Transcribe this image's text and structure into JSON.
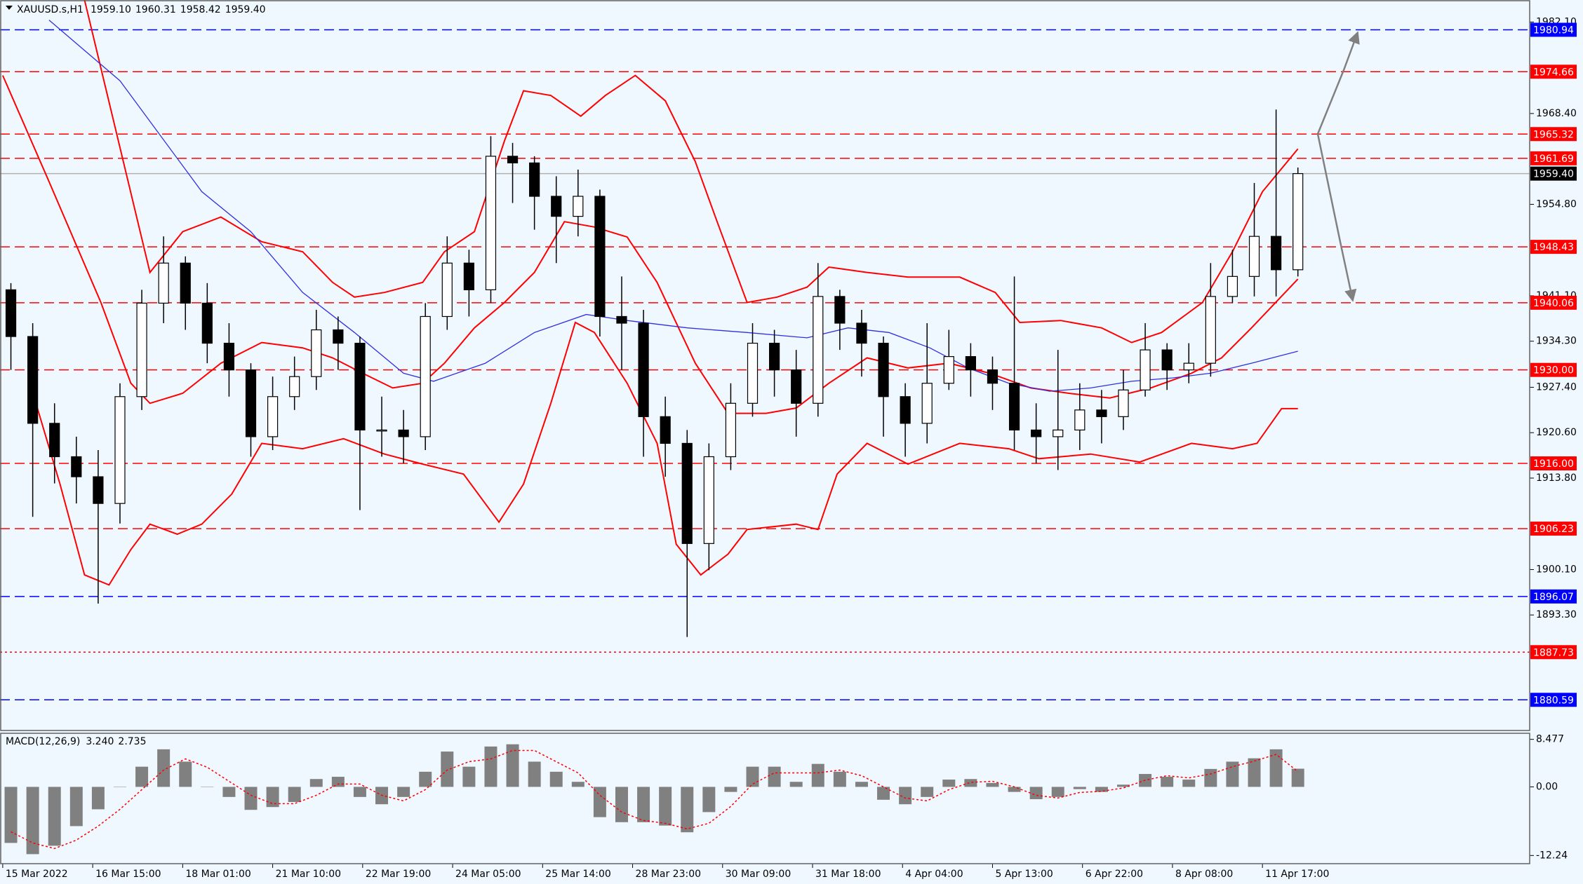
{
  "chart_data": [
    {
      "type": "candlestick",
      "title": "XAUUSD.s,H1",
      "quote": [
        {
          "value": 1959.1,
          "label": "1959.10"
        },
        1960.31,
        1958.42,
        {
          "value": 1959.4,
          "label": "1959.40"
        }
      ],
      "x": [
        3,
        11,
        19,
        27,
        35,
        43,
        51,
        59,
        67,
        75,
        83,
        91,
        99,
        107,
        115,
        123,
        131,
        139,
        147,
        155,
        163,
        171,
        179,
        187,
        195,
        203,
        211,
        219,
        227,
        235,
        243,
        251,
        259,
        267,
        275,
        283,
        291,
        299,
        307,
        315,
        323,
        331,
        339,
        347,
        355,
        363,
        371,
        379,
        387,
        395,
        403,
        411,
        419,
        427,
        435,
        443,
        451,
        459,
        467,
        475
      ],
      "open": [
        1942,
        1935,
        1922,
        1917,
        1914,
        1910,
        1926,
        1940,
        1946,
        1940,
        1934,
        1930,
        1920,
        1926,
        1929,
        1936,
        1934,
        1921,
        1921,
        1920,
        1938,
        1946,
        1942,
        1962,
        1961,
        1956,
        1953,
        1956,
        1938,
        1937,
        1923,
        1919,
        1904,
        1917,
        1925,
        1934,
        1930,
        1925,
        1941,
        1937,
        1934,
        1926,
        1922,
        1928,
        1932,
        1930,
        1928,
        1921,
        1920,
        1921,
        1924,
        1923,
        1927,
        1933,
        1930,
        1931,
        1941,
        1944,
        1950,
        1945
      ],
      "high": [
        1943,
        1937,
        1925,
        1920,
        1918,
        1928,
        1942,
        1950,
        1947,
        1943,
        1937,
        1931,
        1929,
        1932,
        1939,
        1938,
        1935,
        1926,
        1924,
        1940,
        1950,
        1948,
        1965,
        1964,
        1962,
        1959,
        1960,
        1957,
        1944,
        1939,
        1926,
        1921,
        1919,
        1928,
        1937,
        1936,
        1933,
        1946,
        1942,
        1939,
        1935,
        1928,
        1937,
        1936,
        1934,
        1932,
        1944,
        1925,
        1933,
        1928,
        1927,
        1930,
        1937,
        1934,
        1934,
        1946,
        1948,
        1958,
        1969,
        1960.31
      ],
      "low": [
        1930,
        1908,
        1913,
        1910,
        1895,
        1907,
        1924,
        1937,
        1936,
        1931,
        1926,
        1917,
        1918,
        1924,
        1927,
        1930,
        1909,
        1917,
        1916,
        1918,
        1936,
        1938,
        1940,
        1955,
        1951,
        1946,
        1950,
        1935,
        1930,
        1917,
        1914,
        1890,
        1900,
        1915,
        1923,
        1926,
        1920,
        1923,
        1933,
        1929,
        1920,
        1917,
        1919,
        1927,
        1926,
        1924,
        1918,
        1916,
        1915,
        1918,
        1919,
        1921,
        1926,
        1927,
        1928,
        1929,
        1940,
        1941,
        1941,
        1944
      ],
      "close": [
        1935,
        1922,
        1917,
        1914,
        1910,
        1926,
        1940,
        1946,
        1940,
        1934,
        1930,
        1920,
        1926,
        1929,
        1936,
        1934,
        1921,
        1921,
        1920,
        1938,
        1946,
        1942,
        1962,
        1961,
        1956,
        1953,
        1956,
        1938,
        1937,
        1923,
        1919,
        1904,
        1917,
        1925,
        1934,
        1930,
        1925,
        1941,
        1937,
        1934,
        1926,
        1922,
        1928,
        1932,
        1930,
        1928,
        1921,
        1920,
        1921,
        1924,
        1923,
        1927,
        1933,
        1930,
        1931,
        1941,
        1944,
        1950,
        1945,
        1959.4
      ],
      "up_color": "#ffffff",
      "down_color": "#000000",
      "wick_color": "#000000",
      "overlays": [
        {
          "color": "#ff0000",
          "x": [
            30,
            54,
            66,
            80,
            95,
            110,
            121,
            129,
            140,
            154,
            162,
            173,
            184,
            191,
            201,
            212,
            221,
            232,
            243,
            254,
            262,
            273,
            284,
            295,
            303,
            317,
            332,
            351,
            364,
            373,
            388,
            403,
            414,
            425,
            440,
            451,
            462,
            475
          ],
          "values": [
            1985.4,
            1944.6,
            1950.7,
            1952.9,
            1949.2,
            1947.7,
            1943.1,
            1940.9,
            1941.6,
            1943.1,
            1947.7,
            1950.7,
            1964.3,
            1971.8,
            1971.1,
            1968.0,
            1971.1,
            1974.1,
            1970.3,
            1961.2,
            1952.2,
            1940.1,
            1940.9,
            1942.4,
            1945.4,
            1944.6,
            1943.9,
            1943.9,
            1941.6,
            1937.1,
            1937.4,
            1936.3,
            1934.1,
            1935.6,
            1940.1,
            1947.7,
            1956.7,
            1963.1
          ]
        },
        {
          "color": "#ff0000",
          "x": [
            0,
            17,
            36,
            47,
            54,
            66,
            80,
            95,
            110,
            121,
            132,
            143,
            154,
            162,
            173,
            184,
            195,
            206,
            217,
            229,
            240,
            254,
            266,
            280,
            291,
            303,
            317,
            332,
            347,
            362,
            377,
            391,
            406,
            421,
            436,
            447,
            458,
            475
          ],
          "values": [
            1974.1,
            1958.2,
            1940.1,
            1928.0,
            1925.0,
            1926.5,
            1931.0,
            1934.1,
            1933.3,
            1931.8,
            1929.5,
            1927.3,
            1928.0,
            1931.0,
            1936.3,
            1940.1,
            1944.6,
            1952.2,
            1951.4,
            1949.9,
            1943.1,
            1931.0,
            1923.5,
            1923.5,
            1924.3,
            1928.0,
            1931.8,
            1930.3,
            1931.0,
            1929.5,
            1927.3,
            1926.5,
            1925.8,
            1927.3,
            1929.5,
            1931.8,
            1936.3,
            1943.6
          ]
        },
        {
          "color": "#ff0000",
          "x": [
            10,
            21,
            30,
            39,
            47,
            54,
            64,
            73,
            84,
            95,
            110,
            125,
            140,
            154,
            169,
            182,
            191,
            201,
            210,
            217,
            229,
            240,
            247,
            256,
            266,
            273,
            291,
            299,
            306,
            317,
            332,
            351,
            369,
            380,
            399,
            417,
            436,
            451,
            460,
            469,
            475
          ],
          "values": [
            1928.0,
            1912.9,
            1899.3,
            1897.8,
            1903.1,
            1906.9,
            1905.4,
            1906.9,
            1911.4,
            1919.0,
            1918.2,
            1919.7,
            1917.4,
            1915.9,
            1914.4,
            1907.2,
            1912.9,
            1925.0,
            1937.1,
            1935.6,
            1928.0,
            1919.0,
            1903.9,
            1899.3,
            1902.4,
            1906.1,
            1906.9,
            1906.1,
            1914.4,
            1919.0,
            1915.9,
            1919.0,
            1918.2,
            1916.7,
            1917.4,
            1916.2,
            1919.0,
            1918.2,
            1919.0,
            1924.2,
            1924.2
          ]
        },
        {
          "color": "#3030e0",
          "x": [
            17,
            43,
            73,
            91,
            110,
            129,
            147,
            158,
            177,
            195,
            214,
            229,
            251,
            273,
            295,
            310,
            325,
            340,
            354,
            369,
            384,
            399,
            414,
            429,
            443,
            458,
            475
          ],
          "values": [
            1982.4,
            1973.3,
            1956.7,
            1950.7,
            1941.6,
            1935.6,
            1929.5,
            1928.3,
            1931.0,
            1935.6,
            1938.3,
            1937.4,
            1936.3,
            1935.6,
            1934.8,
            1936.3,
            1935.6,
            1933.3,
            1930.3,
            1928.0,
            1926.8,
            1927.3,
            1928.3,
            1928.8,
            1929.5,
            1931.0,
            1932.8
          ]
        }
      ],
      "levels": [
        {
          "value": 1980.94,
          "color": "#0000ff",
          "style": "dashed"
        },
        {
          "value": 1974.66,
          "color": "#ff0000",
          "style": "dashed"
        },
        {
          "value": 1965.32,
          "color": "#ff0000",
          "style": "dashed"
        },
        {
          "value": 1961.69,
          "color": "#ff0000",
          "style": "dashed"
        },
        {
          "value": 1959.4,
          "label": "1959.40",
          "color": "#000000",
          "style": "current"
        },
        {
          "value": 1948.43,
          "color": "#ff0000",
          "style": "dashed"
        },
        {
          "value": 1940.06,
          "color": "#ff0000",
          "style": "dashed"
        },
        {
          "value": 1930.0,
          "label": "1930.00",
          "color": "#ff0000",
          "style": "dashed"
        },
        {
          "value": 1916.0,
          "label": "1916.00",
          "color": "#ff0000",
          "style": "dashed"
        },
        {
          "value": 1906.23,
          "color": "#ff0000",
          "style": "dashed"
        },
        {
          "value": 1896.07,
          "color": "#0000ff",
          "style": "dashed"
        },
        {
          "value": 1887.73,
          "color": "#ff0000",
          "style": "dotted"
        },
        {
          "value": 1880.59,
          "color": "#0000ff",
          "style": "dashed"
        }
      ],
      "xlim": [
        -1,
        560
      ],
      "ylim": [
        1876,
        1985.4
      ],
      "yticks": [
        {
          "value": 1982.1,
          "label": "1982.10"
        },
        {
          "value": 1968.4,
          "label": "1968.40"
        },
        {
          "value": 1954.8,
          "label": "1954.80"
        },
        {
          "value": 1941.1,
          "label": "1941.10"
        },
        {
          "value": 1934.3,
          "label": "1934.30"
        },
        {
          "value": 1927.4,
          "label": "1927.40"
        },
        {
          "value": 1920.6,
          "label": "1920.60"
        },
        {
          "value": 1913.8,
          "label": "1913.80"
        },
        {
          "value": 1900.1,
          "label": "1900.10"
        },
        {
          "value": 1893.3,
          "label": "1893.30"
        }
      ],
      "xticks": [
        {
          "value": 0,
          "label": "15 Mar 2022"
        },
        {
          "value": 33,
          "label": "16 Mar 15:00"
        },
        {
          "value": 66,
          "label": "18 Mar 01:00"
        },
        {
          "value": 99,
          "label": "21 Mar 10:00"
        },
        {
          "value": 132,
          "label": "22 Mar 19:00"
        },
        {
          "value": 165,
          "label": "24 Mar 05:00"
        },
        {
          "value": 198,
          "label": "25 Mar 14:00"
        },
        {
          "value": 231,
          "label": "28 Mar 23:00"
        },
        {
          "value": 264,
          "label": "30 Mar 09:00"
        },
        {
          "value": 297,
          "label": "31 Mar 18:00"
        },
        {
          "value": 330,
          "label": "4 Apr 04:00"
        },
        {
          "value": 363,
          "label": "5 Apr 13:00"
        },
        {
          "value": 396,
          "label": "6 Apr 22:00"
        },
        {
          "value": 429,
          "label": "8 Apr 08:00"
        },
        {
          "value": 462,
          "label": "11 Apr 17:00"
        }
      ]
    },
    {
      "type": "macd",
      "title": "MACD(12,26,9)",
      "indicator_values": [
        {
          "value": 3.24,
          "label": "3.240"
        },
        2.735
      ],
      "x": [
        3,
        11,
        19,
        27,
        35,
        43,
        51,
        59,
        67,
        75,
        83,
        91,
        99,
        107,
        115,
        123,
        131,
        139,
        147,
        155,
        163,
        171,
        179,
        187,
        195,
        203,
        211,
        219,
        227,
        235,
        243,
        251,
        259,
        267,
        275,
        283,
        291,
        299,
        307,
        315,
        323,
        331,
        339,
        347,
        355,
        363,
        371,
        379,
        387,
        395,
        403,
        411,
        419,
        427,
        435,
        443,
        451,
        459,
        467,
        475
      ],
      "values": [
        -10,
        -12,
        -10.5,
        -7,
        -4,
        0,
        3.6,
        6.7,
        4.5,
        0,
        -1.8,
        -4.1,
        -3.6,
        -2.7,
        1.4,
        1.8,
        -1.8,
        -3.1,
        -1.8,
        2.7,
        6.3,
        3.6,
        7.2,
        7.6,
        4.5,
        2.7,
        0.9,
        -5.4,
        -6.3,
        -6.3,
        -6.9,
        -8.1,
        -4.5,
        -0.9,
        3.6,
        3.6,
        0.9,
        4.1,
        2.7,
        0.9,
        -2.3,
        -3.1,
        -1.8,
        1.3,
        1.4,
        0.7,
        -0.9,
        -2.2,
        -1.8,
        -0.4,
        -0.9,
        0.4,
        2.3,
        1.8,
        1.3,
        3.2,
        4.5,
        5.1,
        6.7,
        3.24
      ],
      "signal": [
        -8,
        -10,
        -11,
        -9.5,
        -7,
        -4,
        -0.5,
        3,
        5,
        3.5,
        1,
        -1.5,
        -3,
        -3,
        -1.5,
        0.5,
        0.5,
        -1.5,
        -2.5,
        -0.5,
        3,
        4.5,
        5,
        6.5,
        6.5,
        4.5,
        2.5,
        -1.5,
        -4.5,
        -6,
        -6.5,
        -7.5,
        -6.5,
        -3.5,
        0.5,
        2.5,
        2.5,
        2.5,
        3,
        2,
        0,
        -2,
        -2.5,
        -0.5,
        0.8,
        1,
        0,
        -1.5,
        -2,
        -1,
        -0.8,
        -0.2,
        1.2,
        2,
        1.6,
        2.3,
        3.6,
        4.6,
        5.8,
        2.735
      ],
      "color": "#808080",
      "signal_color": "#ff0000",
      "xlim": [
        -1,
        560
      ],
      "ylim": [
        -13.7,
        9.56
      ],
      "yticks": [
        8.477,
        {
          "value": 0,
          "label": "0.00"
        },
        -12.24
      ]
    }
  ]
}
